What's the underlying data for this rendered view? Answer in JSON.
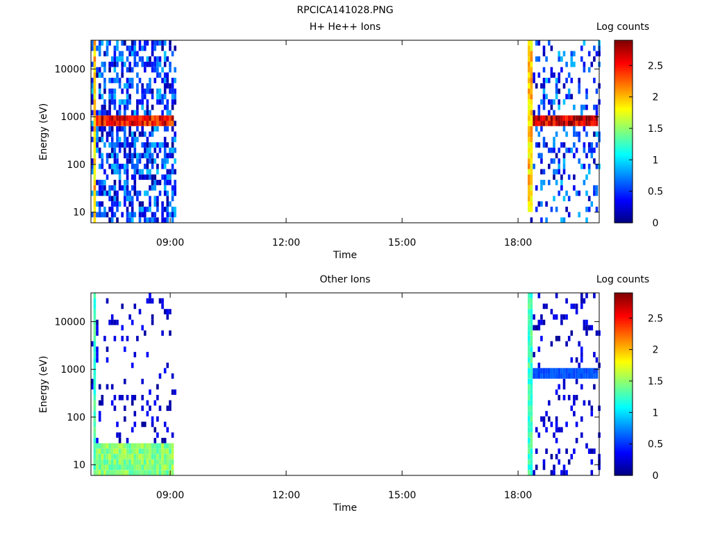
{
  "figure_title": "RPCICA141028.PNG",
  "colors": {
    "colormap": [
      "#00007f",
      "#0000ff",
      "#007fff",
      "#00ffff",
      "#7fff7f",
      "#ffff00",
      "#ff7f00",
      "#ff0000",
      "#7f0000"
    ]
  },
  "chart_data": [
    {
      "type": "heatmap",
      "title": "H+ He++ Ions",
      "xlabel": "Time",
      "ylabel": "Energy (eV)",
      "colorbar_label": "Log counts",
      "colorbar_range": [
        0,
        2.9
      ],
      "colorbar_ticks": [
        "0",
        "0.5",
        "1",
        "1.5",
        "2",
        "2.5"
      ],
      "xlim_hours": [
        6.95,
        20.1
      ],
      "x_ticks": [
        "09:00",
        "12:00",
        "15:00",
        "18:00"
      ],
      "ylim": [
        6,
        40000
      ],
      "y_scale": "log",
      "y_ticks": [
        "10",
        "100",
        "1000",
        "10000"
      ],
      "data_windows_hours": [
        [
          6.95,
          9.1
        ],
        [
          18.25,
          20.1
        ]
      ],
      "features": [
        {
          "time_hours": [
            7.0,
            7.1
          ],
          "energy_ev": [
            6,
            40000
          ],
          "log_counts": 2.0
        },
        {
          "time_hours": [
            18.25,
            18.35
          ],
          "energy_ev": [
            10,
            40000
          ],
          "log_counts": 2.0
        },
        {
          "time_hours": [
            7.1,
            9.1
          ],
          "energy_ev": [
            700,
            1200
          ],
          "log_counts": 2.6
        },
        {
          "time_hours": [
            18.35,
            20.1
          ],
          "energy_ev": [
            700,
            1200
          ],
          "log_counts": 2.7
        }
      ]
    },
    {
      "type": "heatmap",
      "title": "Other Ions",
      "xlabel": "Time",
      "ylabel": "Energy (eV)",
      "colorbar_label": "Log counts",
      "colorbar_range": [
        0,
        2.9
      ],
      "colorbar_ticks": [
        "0",
        "0.5",
        "1",
        "1.5",
        "2",
        "2.5"
      ],
      "xlim_hours": [
        6.95,
        20.1
      ],
      "x_ticks": [
        "09:00",
        "12:00",
        "15:00",
        "18:00"
      ],
      "ylim": [
        6,
        40000
      ],
      "y_scale": "log",
      "y_ticks": [
        "10",
        "100",
        "1000",
        "10000"
      ],
      "data_windows_hours": [
        [
          6.95,
          9.1
        ],
        [
          18.25,
          20.1
        ]
      ],
      "features": [
        {
          "time_hours": [
            7.0,
            7.1
          ],
          "energy_ev": [
            6,
            40000
          ],
          "log_counts": 1.3
        },
        {
          "time_hours": [
            18.25,
            18.35
          ],
          "energy_ev": [
            6,
            40000
          ],
          "log_counts": 1.3
        },
        {
          "time_hours": [
            7.1,
            9.1
          ],
          "energy_ev": [
            6,
            25
          ],
          "log_counts": 1.5
        },
        {
          "time_hours": [
            18.4,
            20.1
          ],
          "energy_ev": [
            700,
            1000
          ],
          "log_counts": 0.6
        }
      ]
    }
  ]
}
